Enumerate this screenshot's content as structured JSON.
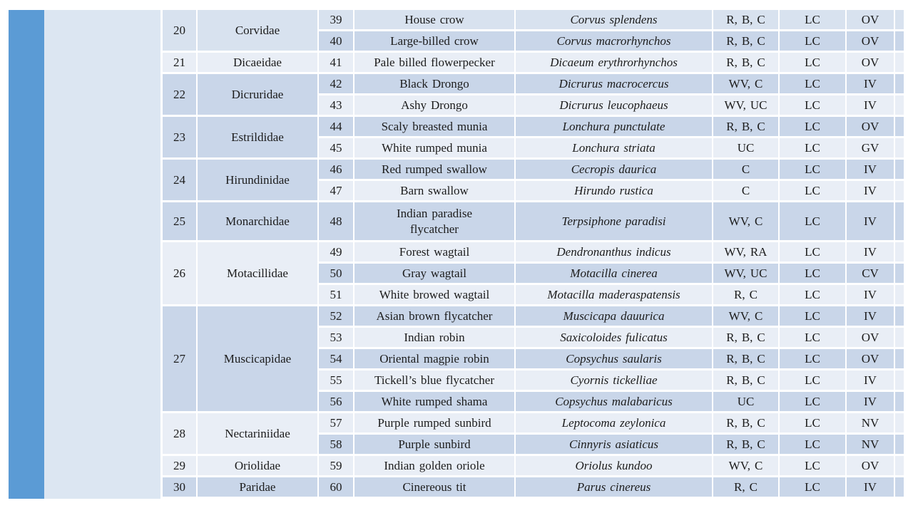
{
  "decor": {
    "accent_bar_color": "#5b9bd5",
    "side_column_color": "#dce6f2",
    "band_first_row_color": "#d8e2ef",
    "band_light_color": "#e9eef6",
    "band_dark_color": "#c9d6e9",
    "grid_border_color": "#ffffff",
    "text_color": "#1c1c1c"
  },
  "table": {
    "families": [
      {
        "no": "20",
        "name": "Corvidae",
        "species": [
          {
            "no": "39",
            "common": "House crow",
            "scientific": "Corvus splendens",
            "status": "R, B, C",
            "iucn": "LC",
            "trend": "OV"
          },
          {
            "no": "40",
            "common": "Large-billed crow",
            "scientific": "Corvus macrorhynchos",
            "status": "R, B, C",
            "iucn": "LC",
            "trend": "OV"
          }
        ]
      },
      {
        "no": "21",
        "name": "Dicaeidae",
        "species": [
          {
            "no": "41",
            "common": "Pale billed flowerpecker",
            "scientific": "Dicaeum erythrorhynchos",
            "status": "R, B, C",
            "iucn": "LC",
            "trend": "OV"
          }
        ]
      },
      {
        "no": "22",
        "name": "Dicruridae",
        "species": [
          {
            "no": "42",
            "common": "Black Drongo",
            "scientific": "Dicrurus macrocercus",
            "status": "WV, C",
            "iucn": "LC",
            "trend": "IV"
          },
          {
            "no": "43",
            "common": "Ashy Drongo",
            "scientific": "Dicrurus leucophaeus",
            "status": "WV, UC",
            "iucn": "LC",
            "trend": "IV"
          }
        ]
      },
      {
        "no": "23",
        "name": "Estrildidae",
        "species": [
          {
            "no": "44",
            "common": "Scaly breasted munia",
            "scientific": "Lonchura punctulate",
            "status": "R, B, C",
            "iucn": "LC",
            "trend": "OV"
          },
          {
            "no": "45",
            "common": "White rumped munia",
            "scientific": "Lonchura striata",
            "status": "UC",
            "iucn": "LC",
            "trend": "GV"
          }
        ]
      },
      {
        "no": "24",
        "name": "Hirundinidae",
        "species": [
          {
            "no": "46",
            "common": "Red rumped swallow",
            "scientific": "Cecropis daurica",
            "status": "C",
            "iucn": "LC",
            "trend": "IV"
          },
          {
            "no": "47",
            "common": "Barn swallow",
            "scientific": "Hirundo rustica",
            "status": "C",
            "iucn": "LC",
            "trend": "IV"
          }
        ]
      },
      {
        "no": "25",
        "name": "Monarchidae",
        "species": [
          {
            "no": "48",
            "common": "Indian paradise\nflycatcher",
            "scientific": "Terpsiphone paradisi",
            "status": "WV, C",
            "iucn": "LC",
            "trend": "IV",
            "tall": true
          }
        ]
      },
      {
        "no": "26",
        "name": "Motacillidae",
        "species": [
          {
            "no": "49",
            "common": "Forest wagtail",
            "scientific": "Dendronanthus indicus",
            "status": "WV, RA",
            "iucn": "LC",
            "trend": "IV"
          },
          {
            "no": "50",
            "common": "Gray wagtail",
            "scientific": "Motacilla cinerea",
            "status": "WV, UC",
            "iucn": "LC",
            "trend": "CV"
          },
          {
            "no": "51",
            "common": "White browed wagtail",
            "scientific": "Motacilla maderaspatensis",
            "status": "R, C",
            "iucn": "LC",
            "trend": "IV"
          }
        ]
      },
      {
        "no": "27",
        "name": "Muscicapidae",
        "species": [
          {
            "no": "52",
            "common": "Asian brown flycatcher",
            "scientific": "Muscicapa dauurica",
            "status": "WV, C",
            "iucn": "LC",
            "trend": "IV"
          },
          {
            "no": "53",
            "common": "Indian robin",
            "scientific": "Saxicoloides fulicatus",
            "status": "R, B, C",
            "iucn": "LC",
            "trend": "OV"
          },
          {
            "no": "54",
            "common": "Oriental magpie robin",
            "scientific": "Copsychus saularis",
            "status": "R, B, C",
            "iucn": "LC",
            "trend": "OV"
          },
          {
            "no": "55",
            "common": "Tickell’s blue flycatcher",
            "scientific": "Cyornis tickelliae",
            "status": "R, B, C",
            "iucn": "LC",
            "trend": "IV"
          },
          {
            "no": "56",
            "common": "White rumped shama",
            "scientific": "Copsychus malabaricus",
            "status": "UC",
            "iucn": "LC",
            "trend": "IV"
          }
        ]
      },
      {
        "no": "28",
        "name": "Nectariniidae",
        "species": [
          {
            "no": "57",
            "common": "Purple rumped sunbird",
            "scientific": "Leptocoma zeylonica",
            "status": "R, B, C",
            "iucn": "LC",
            "trend": "NV"
          },
          {
            "no": "58",
            "common": "Purple sunbird",
            "scientific": "Cinnyris asiaticus",
            "status": "R, B, C",
            "iucn": "LC",
            "trend": "NV"
          }
        ]
      },
      {
        "no": "29",
        "name": "Oriolidae",
        "species": [
          {
            "no": "59",
            "common": "Indian golden oriole",
            "scientific": "Oriolus kundoo",
            "status": "WV, C",
            "iucn": "LC",
            "trend": "OV"
          }
        ]
      },
      {
        "no": "30",
        "name": "Paridae",
        "species": [
          {
            "no": "60",
            "common": "Cinereous tit",
            "scientific": "Parus cinereus",
            "status": "R, C",
            "iucn": "LC",
            "trend": "IV"
          }
        ]
      }
    ]
  }
}
